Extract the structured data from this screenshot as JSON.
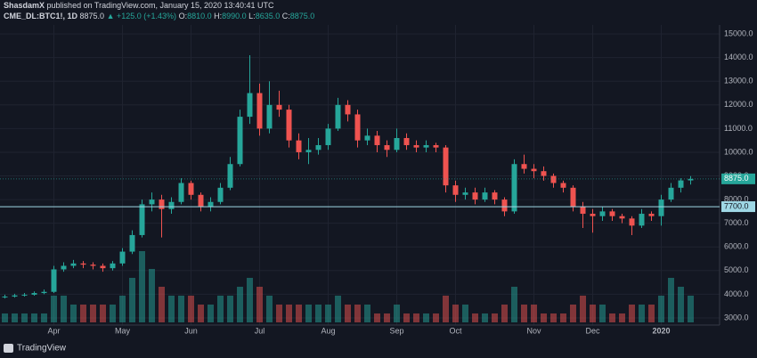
{
  "header": {
    "author": "ShasdamX",
    "published": "published on TradingView.com, January 15, 2020 13:40:41 UTC",
    "symbol": "CME_DL:BTC1!, 1D",
    "price": "8875.0",
    "change": "▲ +125.0 (+1.43%)",
    "o_label": "O:",
    "o": "8810.0",
    "h_label": "H:",
    "h": "8990.0",
    "l_label": "L:",
    "l": "8635.0",
    "c_label": "C:",
    "c": "8875.0"
  },
  "footer": {
    "brand": "TradingView"
  },
  "chart_data": {
    "type": "candlestick",
    "categories": [
      null,
      null,
      null,
      null,
      null,
      "Apr",
      null,
      null,
      null,
      null,
      null,
      null,
      "May",
      null,
      null,
      null,
      null,
      null,
      null,
      "Jun",
      null,
      null,
      null,
      null,
      null,
      null,
      "Jul",
      null,
      null,
      null,
      null,
      null,
      null,
      "Aug",
      null,
      null,
      null,
      null,
      null,
      null,
      "Sep",
      null,
      null,
      null,
      null,
      null,
      "Oct",
      null,
      null,
      null,
      null,
      null,
      null,
      null,
      "Nov",
      null,
      null,
      null,
      null,
      null,
      "Dec",
      null,
      null,
      null,
      null,
      null,
      null,
      "2020",
      null,
      null,
      null
    ],
    "open": [
      3880,
      3900,
      3950,
      3980,
      4050,
      4100,
      5050,
      5200,
      5300,
      5250,
      5200,
      5100,
      5300,
      5800,
      6500,
      7800,
      8000,
      7600,
      7900,
      8700,
      8200,
      7700,
      7900,
      8500,
      9500,
      11500,
      12500,
      11000,
      12000,
      11800,
      10500,
      10000,
      10100,
      10300,
      11000,
      12000,
      11600,
      10500,
      10700,
      10300,
      10100,
      10600,
      10300,
      10200,
      10300,
      10200,
      8600,
      8200,
      8300,
      8000,
      8300,
      8000,
      7500,
      9500,
      9300,
      9200,
      9000,
      8700,
      8500,
      7700,
      7400,
      7300,
      7500,
      7300,
      7200,
      6900,
      7400,
      7300,
      8000,
      8500,
      8810
    ],
    "high": [
      3980,
      4020,
      4050,
      4120,
      4200,
      5200,
      5350,
      5450,
      5400,
      5350,
      5300,
      5400,
      5950,
      6700,
      8000,
      8300,
      8200,
      8100,
      8900,
      8800,
      8300,
      8100,
      8700,
      9800,
      11800,
      14100,
      12900,
      13000,
      12600,
      12000,
      10800,
      10600,
      10600,
      11200,
      12300,
      12200,
      11800,
      11000,
      10900,
      10500,
      11000,
      10800,
      10500,
      10500,
      10400,
      10300,
      8800,
      8500,
      8500,
      8500,
      8400,
      8100,
      9700,
      9900,
      9500,
      9400,
      9100,
      8800,
      8600,
      7900,
      7600,
      7700,
      7600,
      7400,
      7300,
      7600,
      7500,
      8200,
      8700,
      8900,
      8990
    ],
    "low": [
      3820,
      3860,
      3900,
      3940,
      4000,
      4050,
      4950,
      5100,
      5100,
      5050,
      4950,
      5000,
      5200,
      5700,
      6400,
      7500,
      6400,
      7400,
      7800,
      8000,
      7500,
      7500,
      7800,
      8400,
      9400,
      11200,
      10700,
      10800,
      11500,
      10200,
      9700,
      9500,
      9900,
      10100,
      10900,
      11300,
      10200,
      10300,
      10000,
      9800,
      10000,
      10100,
      10000,
      10000,
      10000,
      8300,
      7900,
      8000,
      7800,
      7900,
      7800,
      7300,
      7400,
      9100,
      8900,
      8800,
      8500,
      8300,
      7500,
      6800,
      6600,
      7100,
      7100,
      7000,
      6500,
      6800,
      7100,
      6900,
      7900,
      8300,
      8635
    ],
    "close": [
      3900,
      3950,
      3980,
      4050,
      4100,
      5050,
      5200,
      5300,
      5250,
      5200,
      5100,
      5300,
      5800,
      6500,
      7800,
      8000,
      7600,
      7900,
      8700,
      8200,
      7700,
      7900,
      8500,
      9500,
      11500,
      12500,
      11000,
      12000,
      11800,
      10500,
      10000,
      10100,
      10300,
      11000,
      12000,
      11600,
      10500,
      10700,
      10300,
      10100,
      10600,
      10300,
      10200,
      10300,
      10200,
      8600,
      8200,
      8300,
      8000,
      8300,
      8000,
      7500,
      9500,
      9300,
      9200,
      9000,
      8700,
      8500,
      7700,
      7400,
      7300,
      7500,
      7300,
      7200,
      6900,
      7400,
      7300,
      8000,
      8500,
      8810,
      8875
    ],
    "volume": [
      1,
      1,
      1,
      1,
      1,
      3,
      3,
      2,
      2,
      2,
      2,
      2,
      3,
      5,
      8,
      6,
      4,
      3,
      3,
      3,
      2,
      2,
      3,
      3,
      4,
      5,
      4,
      3,
      2,
      2,
      2,
      2,
      2,
      2,
      3,
      2,
      2,
      2,
      1,
      1,
      2,
      1,
      1,
      1,
      1,
      3,
      2,
      2,
      1,
      1,
      1,
      2,
      4,
      2,
      2,
      1,
      1,
      1,
      2,
      3,
      2,
      2,
      1,
      1,
      2,
      2,
      2,
      3,
      5,
      4,
      3
    ],
    "up_color": "#26a69a",
    "down_color": "#ef5350",
    "ylim": [
      2810,
      15380
    ],
    "yticks": [
      {
        "value": 3000,
        "label": "3000.0"
      },
      {
        "value": 4000,
        "label": "4000.0"
      },
      {
        "value": 5000,
        "label": "5000.0"
      },
      {
        "value": 6000,
        "label": "6000.0"
      },
      {
        "value": 7000,
        "label": "7000.0"
      },
      {
        "value": 8000,
        "label": "8000.0"
      },
      {
        "value": 9000,
        "label": "9000.0"
      },
      {
        "value": 10000,
        "label": "10000.0"
      },
      {
        "value": 11000,
        "label": "11000.0"
      },
      {
        "value": 12000,
        "label": "12000.0"
      },
      {
        "value": 13000,
        "label": "13000.0"
      },
      {
        "value": 14000,
        "label": "14000.0"
      },
      {
        "value": 15000,
        "label": "15000.0"
      }
    ],
    "grid": true,
    "hline": {
      "value": 7700,
      "label": "7700.0",
      "color": "#9fd8e6"
    },
    "last_price": {
      "value": 8875,
      "label": "8875.0"
    }
  }
}
